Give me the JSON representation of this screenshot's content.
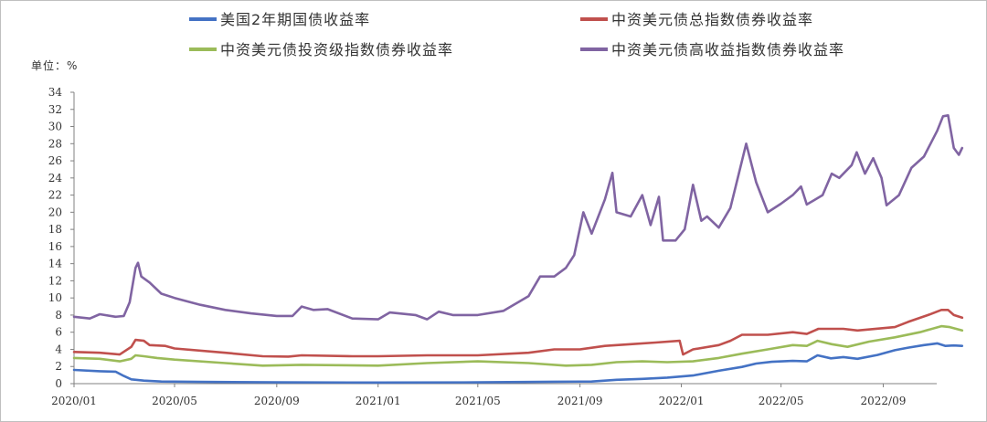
{
  "chart_data": {
    "type": "line",
    "title": "",
    "unit_label": "单位：%",
    "xlabel": "",
    "ylabel": "",
    "ylim": [
      0,
      34
    ],
    "yticks": [
      0,
      2,
      4,
      6,
      8,
      10,
      12,
      14,
      16,
      18,
      20,
      22,
      24,
      26,
      28,
      30,
      32,
      34
    ],
    "xlim": [
      "2020-01-01",
      "2022-12-05"
    ],
    "xticks": [
      {
        "date": "2020-01-01",
        "label": "2020/01"
      },
      {
        "date": "2020-05-01",
        "label": "2020/05"
      },
      {
        "date": "2020-09-01",
        "label": "2020/09"
      },
      {
        "date": "2021-01-01",
        "label": "2021/01"
      },
      {
        "date": "2021-05-01",
        "label": "2021/05"
      },
      {
        "date": "2021-09-01",
        "label": "2021/09"
      },
      {
        "date": "2022-01-01",
        "label": "2022/01"
      },
      {
        "date": "2022-05-01",
        "label": "2022/05"
      },
      {
        "date": "2022-09-01",
        "label": "2022/09"
      }
    ],
    "grid": false,
    "legend_position": "top",
    "series": [
      {
        "name": "美国2年期国债收益率",
        "color": "#4472C4",
        "points": [
          [
            "2020-01-01",
            1.6
          ],
          [
            "2020-02-01",
            1.45
          ],
          [
            "2020-02-20",
            1.4
          ],
          [
            "2020-03-01",
            0.9
          ],
          [
            "2020-03-10",
            0.5
          ],
          [
            "2020-03-25",
            0.35
          ],
          [
            "2020-04-15",
            0.25
          ],
          [
            "2020-06-01",
            0.2
          ],
          [
            "2020-09-01",
            0.15
          ],
          [
            "2021-01-01",
            0.13
          ],
          [
            "2021-05-01",
            0.15
          ],
          [
            "2021-08-01",
            0.22
          ],
          [
            "2021-09-15",
            0.25
          ],
          [
            "2021-10-15",
            0.45
          ],
          [
            "2021-11-15",
            0.55
          ],
          [
            "2021-12-15",
            0.7
          ],
          [
            "2022-01-15",
            0.95
          ],
          [
            "2022-02-15",
            1.5
          ],
          [
            "2022-03-15",
            1.95
          ],
          [
            "2022-04-01",
            2.35
          ],
          [
            "2022-04-20",
            2.55
          ],
          [
            "2022-05-15",
            2.65
          ],
          [
            "2022-06-01",
            2.6
          ],
          [
            "2022-06-14",
            3.3
          ],
          [
            "2022-06-30",
            2.95
          ],
          [
            "2022-07-15",
            3.1
          ],
          [
            "2022-08-01",
            2.9
          ],
          [
            "2022-08-25",
            3.35
          ],
          [
            "2022-09-15",
            3.9
          ],
          [
            "2022-10-01",
            4.2
          ],
          [
            "2022-10-20",
            4.5
          ],
          [
            "2022-11-05",
            4.7
          ],
          [
            "2022-11-15",
            4.4
          ],
          [
            "2022-11-25",
            4.45
          ],
          [
            "2022-12-05",
            4.4
          ]
        ]
      },
      {
        "name": "中资美元债总指数债券收益率",
        "color": "#C0504D",
        "points": [
          [
            "2020-01-01",
            3.7
          ],
          [
            "2020-02-01",
            3.6
          ],
          [
            "2020-02-25",
            3.4
          ],
          [
            "2020-03-10",
            4.3
          ],
          [
            "2020-03-15",
            5.1
          ],
          [
            "2020-03-25",
            5.0
          ],
          [
            "2020-04-01",
            4.5
          ],
          [
            "2020-04-20",
            4.4
          ],
          [
            "2020-05-01",
            4.1
          ],
          [
            "2020-07-01",
            3.6
          ],
          [
            "2020-08-15",
            3.2
          ],
          [
            "2020-09-15",
            3.15
          ],
          [
            "2020-10-01",
            3.3
          ],
          [
            "2020-12-01",
            3.2
          ],
          [
            "2021-01-01",
            3.2
          ],
          [
            "2021-03-01",
            3.3
          ],
          [
            "2021-05-01",
            3.3
          ],
          [
            "2021-07-01",
            3.6
          ],
          [
            "2021-08-01",
            4.0
          ],
          [
            "2021-09-01",
            4.0
          ],
          [
            "2021-10-01",
            4.4
          ],
          [
            "2021-11-01",
            4.6
          ],
          [
            "2021-12-01",
            4.8
          ],
          [
            "2021-12-30",
            5.0
          ],
          [
            "2022-01-03",
            3.4
          ],
          [
            "2022-01-15",
            4.0
          ],
          [
            "2022-02-15",
            4.5
          ],
          [
            "2022-03-01",
            5.0
          ],
          [
            "2022-03-15",
            5.7
          ],
          [
            "2022-04-15",
            5.7
          ],
          [
            "2022-05-15",
            6.0
          ],
          [
            "2022-06-01",
            5.8
          ],
          [
            "2022-06-15",
            6.4
          ],
          [
            "2022-07-15",
            6.4
          ],
          [
            "2022-08-01",
            6.2
          ],
          [
            "2022-09-15",
            6.6
          ],
          [
            "2022-10-01",
            7.2
          ],
          [
            "2022-10-25",
            8.0
          ],
          [
            "2022-11-10",
            8.6
          ],
          [
            "2022-11-18",
            8.6
          ],
          [
            "2022-11-25",
            8.0
          ],
          [
            "2022-12-05",
            7.7
          ]
        ]
      },
      {
        "name": "中资美元债投资级指数债券收益率",
        "color": "#9BBB59",
        "points": [
          [
            "2020-01-01",
            3.0
          ],
          [
            "2020-02-01",
            2.9
          ],
          [
            "2020-02-25",
            2.6
          ],
          [
            "2020-03-10",
            2.9
          ],
          [
            "2020-03-15",
            3.3
          ],
          [
            "2020-03-25",
            3.2
          ],
          [
            "2020-04-10",
            3.0
          ],
          [
            "2020-05-01",
            2.8
          ],
          [
            "2020-07-01",
            2.4
          ],
          [
            "2020-08-15",
            2.1
          ],
          [
            "2020-10-01",
            2.2
          ],
          [
            "2021-01-01",
            2.1
          ],
          [
            "2021-03-01",
            2.4
          ],
          [
            "2021-05-01",
            2.6
          ],
          [
            "2021-07-01",
            2.4
          ],
          [
            "2021-08-15",
            2.1
          ],
          [
            "2021-09-15",
            2.2
          ],
          [
            "2021-10-15",
            2.5
          ],
          [
            "2021-11-15",
            2.6
          ],
          [
            "2021-12-15",
            2.5
          ],
          [
            "2022-01-15",
            2.6
          ],
          [
            "2022-02-15",
            3.0
          ],
          [
            "2022-03-15",
            3.5
          ],
          [
            "2022-04-15",
            4.0
          ],
          [
            "2022-05-15",
            4.5
          ],
          [
            "2022-06-01",
            4.4
          ],
          [
            "2022-06-14",
            5.0
          ],
          [
            "2022-07-01",
            4.6
          ],
          [
            "2022-07-20",
            4.3
          ],
          [
            "2022-08-15",
            4.9
          ],
          [
            "2022-09-15",
            5.4
          ],
          [
            "2022-10-15",
            6.0
          ],
          [
            "2022-11-10",
            6.7
          ],
          [
            "2022-11-20",
            6.6
          ],
          [
            "2022-12-05",
            6.2
          ]
        ]
      },
      {
        "name": "中资美元债高收益指数债券收益率",
        "color": "#8064A2",
        "points": [
          [
            "2020-01-01",
            7.8
          ],
          [
            "2020-01-20",
            7.6
          ],
          [
            "2020-02-01",
            8.1
          ],
          [
            "2020-02-20",
            7.8
          ],
          [
            "2020-03-01",
            7.9
          ],
          [
            "2020-03-08",
            9.5
          ],
          [
            "2020-03-15",
            13.5
          ],
          [
            "2020-03-18",
            14.1
          ],
          [
            "2020-03-22",
            12.5
          ],
          [
            "2020-04-01",
            11.8
          ],
          [
            "2020-04-15",
            10.5
          ],
          [
            "2020-05-01",
            10.0
          ],
          [
            "2020-06-01",
            9.2
          ],
          [
            "2020-07-01",
            8.6
          ],
          [
            "2020-08-01",
            8.2
          ],
          [
            "2020-09-01",
            7.9
          ],
          [
            "2020-09-20",
            7.9
          ],
          [
            "2020-10-01",
            9.0
          ],
          [
            "2020-10-15",
            8.6
          ],
          [
            "2020-11-01",
            8.7
          ],
          [
            "2020-12-01",
            7.6
          ],
          [
            "2021-01-01",
            7.5
          ],
          [
            "2021-01-15",
            8.3
          ],
          [
            "2021-02-15",
            8.0
          ],
          [
            "2021-03-01",
            7.5
          ],
          [
            "2021-03-15",
            8.4
          ],
          [
            "2021-04-01",
            8.0
          ],
          [
            "2021-05-01",
            8.0
          ],
          [
            "2021-06-01",
            8.5
          ],
          [
            "2021-07-01",
            10.2
          ],
          [
            "2021-07-15",
            12.5
          ],
          [
            "2021-08-01",
            12.5
          ],
          [
            "2021-08-15",
            13.5
          ],
          [
            "2021-08-25",
            15.0
          ],
          [
            "2021-09-05",
            20.0
          ],
          [
            "2021-09-15",
            17.5
          ],
          [
            "2021-10-01",
            21.5
          ],
          [
            "2021-10-10",
            24.6
          ],
          [
            "2021-10-15",
            20.0
          ],
          [
            "2021-11-01",
            19.5
          ],
          [
            "2021-11-15",
            22.0
          ],
          [
            "2021-11-25",
            18.5
          ],
          [
            "2021-12-05",
            21.8
          ],
          [
            "2021-12-10",
            16.7
          ],
          [
            "2021-12-25",
            16.7
          ],
          [
            "2022-01-05",
            18.0
          ],
          [
            "2022-01-15",
            23.2
          ],
          [
            "2022-01-25",
            19.0
          ],
          [
            "2022-02-01",
            19.5
          ],
          [
            "2022-02-15",
            18.2
          ],
          [
            "2022-03-01",
            20.5
          ],
          [
            "2022-03-15",
            26.0
          ],
          [
            "2022-03-20",
            28.0
          ],
          [
            "2022-04-01",
            23.5
          ],
          [
            "2022-04-15",
            20.0
          ],
          [
            "2022-05-01",
            21.0
          ],
          [
            "2022-05-15",
            22.0
          ],
          [
            "2022-05-25",
            23.0
          ],
          [
            "2022-06-01",
            20.9
          ],
          [
            "2022-06-20",
            22.0
          ],
          [
            "2022-07-01",
            24.5
          ],
          [
            "2022-07-10",
            24.0
          ],
          [
            "2022-07-25",
            25.5
          ],
          [
            "2022-07-31",
            27.0
          ],
          [
            "2022-08-10",
            24.5
          ],
          [
            "2022-08-20",
            26.3
          ],
          [
            "2022-08-30",
            24.0
          ],
          [
            "2022-09-05",
            20.8
          ],
          [
            "2022-09-20",
            22.0
          ],
          [
            "2022-10-05",
            25.2
          ],
          [
            "2022-10-20",
            26.5
          ],
          [
            "2022-11-05",
            29.5
          ],
          [
            "2022-11-12",
            31.2
          ],
          [
            "2022-11-18",
            31.3
          ],
          [
            "2022-11-25",
            27.5
          ],
          [
            "2022-12-01",
            26.7
          ],
          [
            "2022-12-05",
            27.5
          ]
        ]
      }
    ]
  }
}
